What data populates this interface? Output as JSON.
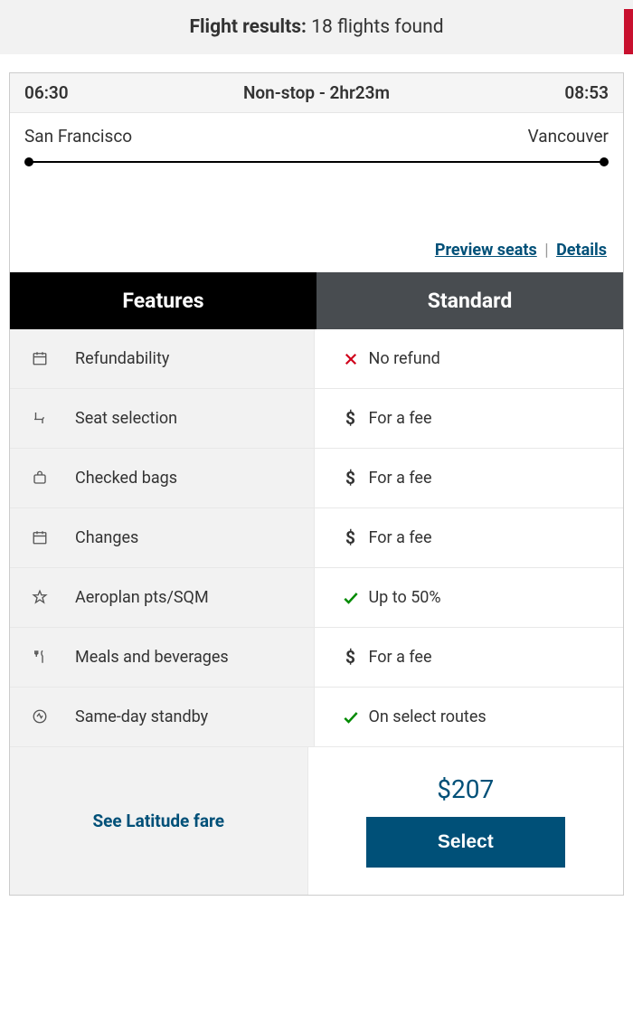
{
  "results": {
    "label": "Flight results:",
    "count_text": "18 flights found"
  },
  "flight": {
    "depart_time": "06:30",
    "stops_duration": "Non-stop - 2hr23m",
    "arrive_time": "08:53",
    "origin": "San Francisco",
    "destination": "Vancouver"
  },
  "links": {
    "preview_seats": "Preview seats",
    "details": "Details"
  },
  "columns": {
    "features": "Features",
    "standard": "Standard"
  },
  "features": [
    {
      "icon": "calendar",
      "label": "Refundability",
      "status_icon": "x",
      "status_text": "No refund"
    },
    {
      "icon": "seat",
      "label": "Seat selection",
      "status_icon": "dollar",
      "status_text": "For a fee"
    },
    {
      "icon": "bag",
      "label": "Checked bags",
      "status_icon": "dollar",
      "status_text": "For a fee"
    },
    {
      "icon": "calendar",
      "label": "Changes",
      "status_icon": "dollar",
      "status_text": "For a fee"
    },
    {
      "icon": "star",
      "label": "Aeroplan pts/SQM",
      "status_icon": "check",
      "status_text": "Up to 50%"
    },
    {
      "icon": "meal",
      "label": "Meals and beverages",
      "status_icon": "dollar",
      "status_text": "For a fee"
    },
    {
      "icon": "standby",
      "label": "Same-day standby",
      "status_icon": "check",
      "status_text": "On select routes"
    }
  ],
  "footer": {
    "latitude_link": "See Latitude fare",
    "price": "$207",
    "select_label": "Select"
  },
  "colors": {
    "brand_red": "#c8102e",
    "link_blue": "#005078",
    "check_green": "#008a00",
    "x_red": "#d0021b",
    "header_black": "#000000",
    "header_gray": "#484c50",
    "bg_gray": "#f2f2f2"
  }
}
